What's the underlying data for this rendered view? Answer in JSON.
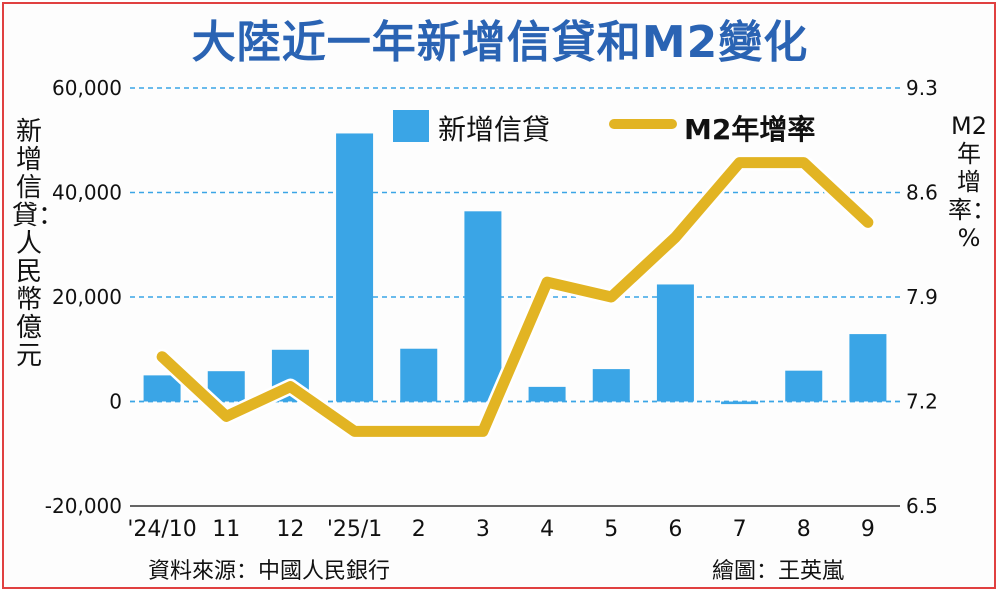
{
  "title": "大陸近一年新增信貸和M2變化",
  "left_axis_label": "新增信貸：人民幣億元",
  "right_axis_label": "M2年增率：%",
  "source": "資料來源：中國人民銀行",
  "credit": "繪圖：王英嵐",
  "colors": {
    "bar": "#3aa5e6",
    "line": "#e2b423",
    "title": "#2a63b3",
    "grid": "#3aa5e6"
  },
  "chart_data": {
    "type": "bar+line",
    "categories": [
      "'24/10",
      "11",
      "12",
      "'25/1",
      "2",
      "3",
      "4",
      "5",
      "6",
      "7",
      "8",
      "9"
    ],
    "series": [
      {
        "name": "新增信貸",
        "type": "bar",
        "axis": "left",
        "values": [
          5000,
          5800,
          9900,
          51300,
          10100,
          36400,
          2800,
          6200,
          22400,
          -500,
          5900,
          12900
        ]
      },
      {
        "name": "M2年增率",
        "type": "line",
        "axis": "right",
        "values": [
          7.5,
          7.1,
          7.3,
          7.0,
          7.0,
          7.0,
          8.0,
          7.9,
          8.3,
          8.8,
          8.8,
          8.4
        ]
      }
    ],
    "left_axis": {
      "ticks": [
        "60,000",
        "40,000",
        "20,000",
        "0",
        "-20,000"
      ],
      "range": [
        -20000,
        60000
      ]
    },
    "right_axis": {
      "ticks": [
        "9.3",
        "8.6",
        "7.9",
        "7.2",
        "6.5"
      ],
      "range": [
        6.5,
        9.3
      ]
    },
    "legend_position": "top-center",
    "grid": "horizontal-dashed"
  }
}
